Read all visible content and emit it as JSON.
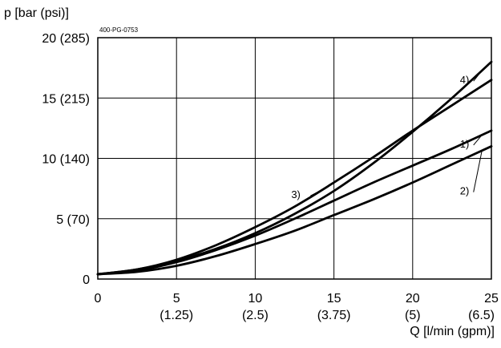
{
  "chart_data": {
    "type": "line",
    "figure_code": "400-PG-0753",
    "ylabel": "p [bar (psi)]",
    "xlabel": "Q [l/min (gpm)]",
    "xlim": [
      0,
      25
    ],
    "ylim": [
      0,
      20
    ],
    "grid": true,
    "x_ticks": [
      {
        "value": 0,
        "label": "0",
        "sub": ""
      },
      {
        "value": 5,
        "label": "5",
        "sub": "(1.25)"
      },
      {
        "value": 10,
        "label": "10",
        "sub": "(2.5)"
      },
      {
        "value": 15,
        "label": "15",
        "sub": "(3.75)"
      },
      {
        "value": 20,
        "label": "20",
        "sub": "(5)"
      },
      {
        "value": 25,
        "label": "25",
        "sub": "(6.5)"
      }
    ],
    "y_ticks": [
      {
        "value": 0,
        "label": "0"
      },
      {
        "value": 5,
        "label": "5 (70)"
      },
      {
        "value": 10,
        "label": "10 (140)"
      },
      {
        "value": 15,
        "label": "15 (215)"
      },
      {
        "value": 20,
        "label": "20 (285)"
      }
    ],
    "x": [
      0,
      2.5,
      5,
      7.5,
      10,
      12.5,
      15,
      17.5,
      20,
      22.5,
      25
    ],
    "series": [
      {
        "name": "1)",
        "values": [
          0.4,
          0.7,
          1.4,
          2.4,
          3.6,
          5.0,
          6.5,
          8.0,
          9.4,
          10.8,
          12.3
        ],
        "label_at": [
          23.0,
          10.9
        ]
      },
      {
        "name": "2)",
        "values": [
          0.4,
          0.6,
          1.1,
          1.9,
          2.9,
          4.0,
          5.3,
          6.6,
          8.0,
          9.5,
          11.0
        ],
        "label_at": [
          23.0,
          7.0
        ]
      },
      {
        "name": "3)",
        "values": [
          0.4,
          0.8,
          1.6,
          2.8,
          4.3,
          6.0,
          8.0,
          10.1,
          12.3,
          14.4,
          16.5
        ],
        "label_at": [
          13.0,
          6.7
        ]
      },
      {
        "name": "4)",
        "values": [
          0.4,
          0.8,
          1.5,
          2.5,
          3.8,
          5.4,
          7.3,
          9.6,
          12.2,
          15.0,
          18.0
        ],
        "label_at": [
          23.0,
          16.2
        ]
      }
    ]
  }
}
